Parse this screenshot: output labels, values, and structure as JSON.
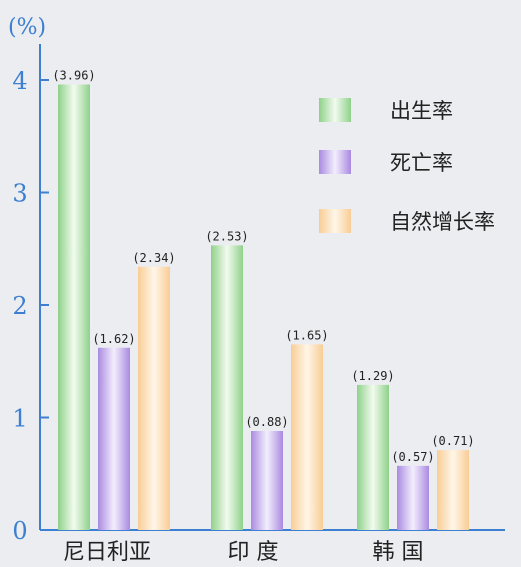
{
  "chart_data": {
    "type": "bar",
    "unit_label": "(%)",
    "categories": [
      "尼日利亚",
      "印 度",
      "韩 国"
    ],
    "series": [
      {
        "name": "出生率",
        "values": [
          3.96,
          2.53,
          1.29
        ],
        "labels": [
          "(3.96)",
          "(2.53)",
          "(1.29)"
        ]
      },
      {
        "name": "死亡率",
        "values": [
          1.62,
          0.88,
          0.57
        ],
        "labels": [
          "(1.62)",
          "(0.88)",
          "(0.57)"
        ]
      },
      {
        "name": "自然增长率",
        "values": [
          2.34,
          1.65,
          0.71
        ],
        "labels": [
          "(2.34)",
          "(1.65)",
          "(0.71)"
        ]
      }
    ],
    "yticks": [
      "0",
      "1",
      "2",
      "3",
      "4"
    ],
    "ylim": [
      0,
      4.2
    ],
    "grid": false,
    "legend_position": "top-right",
    "colors": {
      "axis": "#3d7fd0",
      "series": [
        "#8fd18a",
        "#a98ae0",
        "#f8cd95"
      ],
      "series_center": [
        "#f2fbef",
        "#f3eefd",
        "#fff6e8"
      ]
    }
  }
}
